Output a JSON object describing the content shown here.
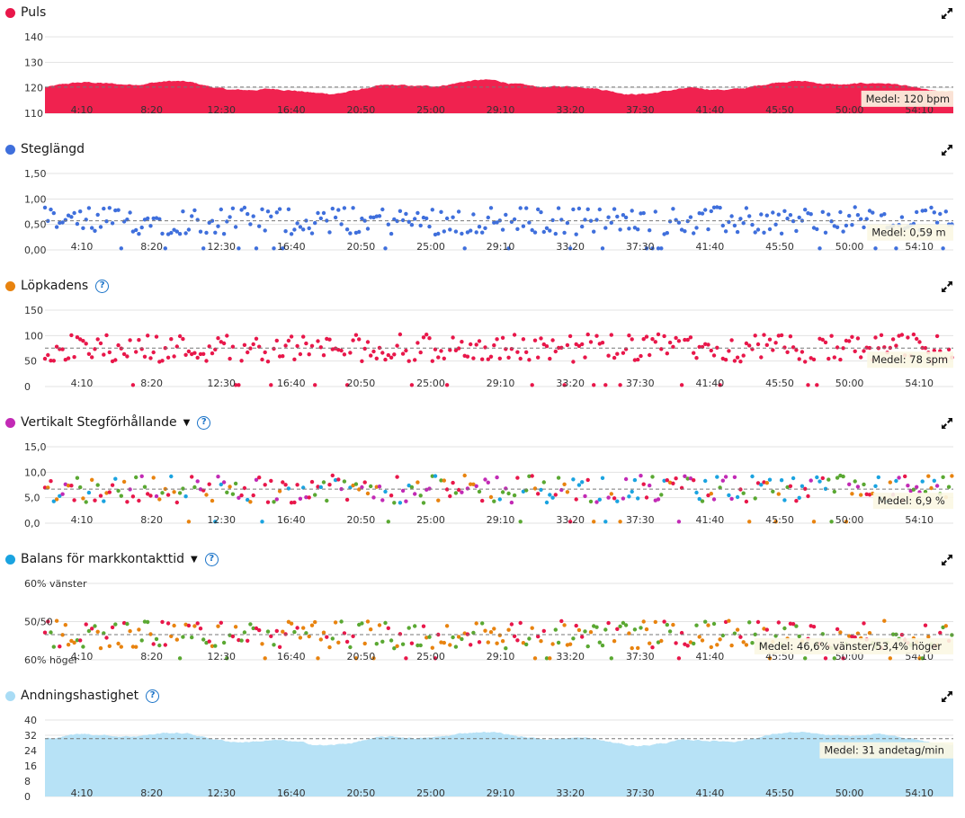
{
  "panels": [
    {
      "id": "puls",
      "title": "Puls",
      "dot_color": "#e8174a",
      "has_help": false,
      "has_dropdown": false,
      "kind": "area",
      "color": "#f0224f",
      "y_ticks": [
        "140",
        "130",
        "120",
        "110"
      ],
      "y_min": 108,
      "y_max": 143,
      "mean_value": 120,
      "mean_label": "Medel: 120 bpm",
      "x_ticks": [
        "4:10",
        "8:20",
        "12:30",
        "16:40",
        "20:50",
        "25:00",
        "29:10",
        "33:20",
        "37:30",
        "41:40",
        "45:50",
        "50:00",
        "54:10"
      ]
    },
    {
      "id": "steglangd",
      "title": "Steglängd",
      "dot_color": "#3f6fdc",
      "has_help": false,
      "has_dropdown": false,
      "kind": "scatter",
      "color": "#3f6fdc",
      "y_ticks": [
        "1,50",
        "1,00",
        "0,50",
        "0,00"
      ],
      "y_min": 0,
      "y_max": 1.55,
      "mean_value": 0.59,
      "mean_label": "Medel: 0,59 m",
      "x_ticks": [
        "4:10",
        "8:20",
        "12:30",
        "16:40",
        "20:50",
        "25:00",
        "29:10",
        "33:20",
        "37:30",
        "41:40",
        "45:50",
        "50:00",
        "54:10"
      ]
    },
    {
      "id": "lopkadens",
      "title": "Löpkadens",
      "dot_color": "#e8830f",
      "has_help": true,
      "has_dropdown": false,
      "kind": "scatter",
      "color": "#e8174a",
      "y_ticks": [
        "150",
        "100",
        "50",
        "0"
      ],
      "y_min": 0,
      "y_max": 155,
      "mean_value": 78,
      "mean_label": "Medel: 78 spm",
      "x_ticks": [
        "4:10",
        "8:20",
        "12:30",
        "16:40",
        "20:50",
        "25:00",
        "29:10",
        "33:20",
        "37:30",
        "41:40",
        "45:50",
        "50:00",
        "54:10"
      ]
    },
    {
      "id": "vertikalt",
      "title": "Vertikalt Stegförhållande",
      "dot_color": "#c22ab5",
      "has_help": true,
      "has_dropdown": true,
      "kind": "scatter_multi",
      "color": "#c22ab5",
      "palette": [
        "#c22ab5",
        "#1aa3e0",
        "#5aa832",
        "#e8830f",
        "#e8174a"
      ],
      "y_ticks": [
        "15,0",
        "10,0",
        "5,0",
        "0,0"
      ],
      "y_min": 0,
      "y_max": 15.5,
      "mean_value": 6.9,
      "mean_label": "Medel: 6,9 %",
      "x_ticks": [
        "4:10",
        "8:20",
        "12:30",
        "16:40",
        "20:50",
        "25:00",
        "29:10",
        "33:20",
        "37:30",
        "41:40",
        "45:50",
        "50:00",
        "54:10"
      ]
    },
    {
      "id": "balans",
      "title": "Balans för markkontakttid",
      "dot_color": "#1aa3e0",
      "has_help": true,
      "has_dropdown": true,
      "kind": "scatter_multi",
      "color": "#e8830f",
      "palette": [
        "#e8830f",
        "#5aa832",
        "#e8174a"
      ],
      "y_ticks": [
        "60% vänster",
        "50/50",
        "60% höger"
      ],
      "y_min": -1,
      "y_max": 1,
      "mean_value": -0.34,
      "mean_label": "Medel: 46,6% vänster/53,4% höger",
      "x_ticks": [
        "4:10",
        "8:20",
        "12:30",
        "16:40",
        "20:50",
        "25:00",
        "29:10",
        "33:20",
        "37:30",
        "41:40",
        "45:50",
        "50:00",
        "54:10"
      ]
    },
    {
      "id": "andning",
      "title": "Andningshastighet",
      "dot_color": "#a9dcf5",
      "has_help": true,
      "has_dropdown": false,
      "kind": "area",
      "color": "#b7e2f6",
      "y_ticks": [
        "40",
        "32",
        "24",
        "16",
        "8",
        "0"
      ],
      "y_min": 0,
      "y_max": 41,
      "mean_value": 31,
      "mean_label": "Medel: 31 andetag/min",
      "x_ticks": [
        "4:10",
        "8:20",
        "12:30",
        "16:40",
        "20:50",
        "25:00",
        "29:10",
        "33:20",
        "37:30",
        "41:40",
        "45:50",
        "50:00",
        "54:10"
      ]
    }
  ],
  "colors": {
    "grid": "#e3e3e3",
    "axis_text": "#333333",
    "mean_line": "#777777",
    "mean_box_bg": "#fbf7e3"
  },
  "icons": {
    "expand": "expand-icon",
    "help": "help-icon",
    "caret": "chevron-down-icon"
  }
}
